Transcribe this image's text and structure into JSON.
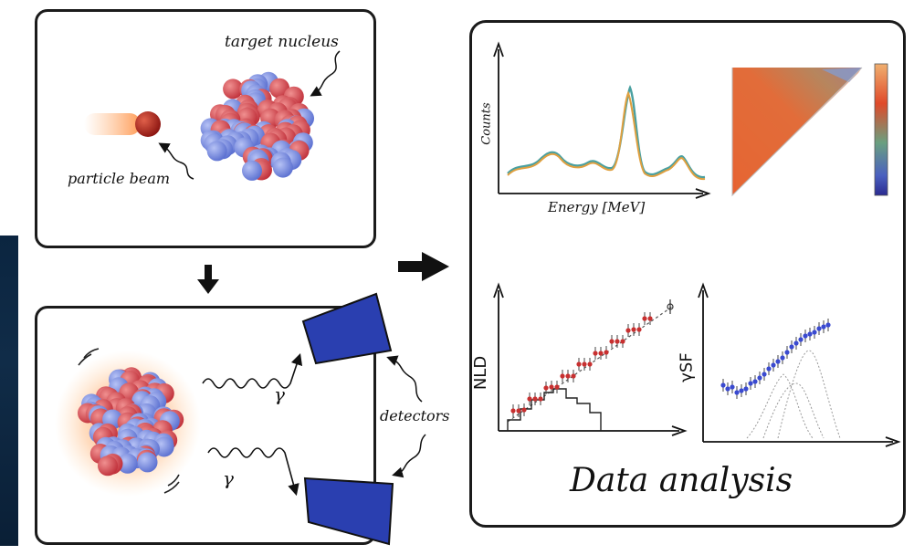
{
  "top_panel": {
    "target_label": "target nucleus",
    "beam_label": "particle beam"
  },
  "bottom_panel": {
    "gamma_label_1": "γ",
    "gamma_label_2": "γ",
    "detectors_label": "detectors"
  },
  "analysis_panel": {
    "spectrum": {
      "ylabel": "Counts",
      "xlabel": "Energy [MeV]"
    },
    "nld": {
      "ylabel": "NLD"
    },
    "gsf": {
      "ylabel": "γSF"
    },
    "caption": "Data analysis"
  },
  "colors": {
    "proton": "#d94a4a",
    "neutron": "#7b8fe0",
    "detector": "#2a3fb0",
    "beam": "#b0201a"
  }
}
